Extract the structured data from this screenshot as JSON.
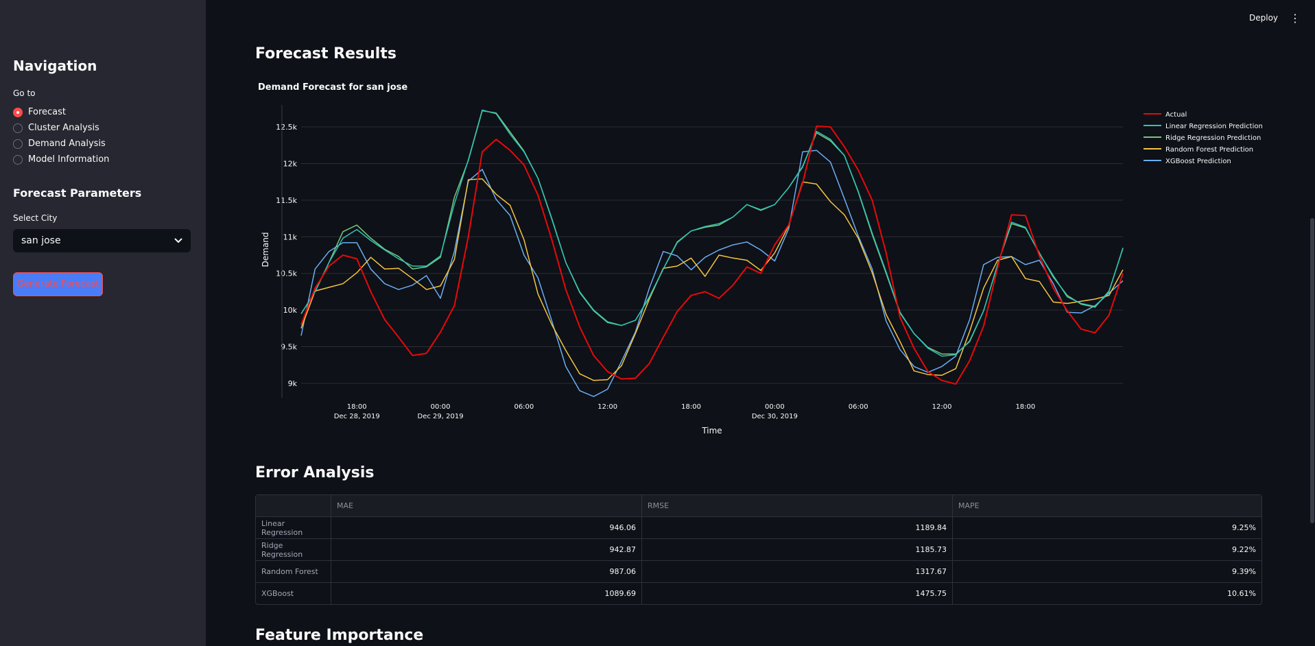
{
  "sidebar": {
    "title": "Navigation",
    "goto_label": "Go to",
    "nav_items": [
      {
        "label": "Forecast",
        "selected": true
      },
      {
        "label": "Cluster Analysis",
        "selected": false
      },
      {
        "label": "Demand Analysis",
        "selected": false
      },
      {
        "label": "Model Information",
        "selected": false
      }
    ],
    "params_title": "Forecast Parameters",
    "city_label": "Select City",
    "city_value": "san jose",
    "generate_label": "Generate Forecast"
  },
  "header": {
    "deploy_label": "Deploy",
    "menu_icon": "kebab-menu-icon"
  },
  "main": {
    "forecast_title": "Forecast Results",
    "chart_title": "Demand Forecast for san jose",
    "error_title": "Error Analysis",
    "feature_title": "Feature Importance"
  },
  "chart_data": {
    "type": "line",
    "title": "Demand Forecast for san jose",
    "xlabel": "Time",
    "ylabel": "Demand",
    "ylim": [
      8850,
      12800
    ],
    "y_ticks": [
      9000,
      9500,
      10000,
      10500,
      11000,
      11500,
      12000,
      12500
    ],
    "y_tick_labels": [
      "9k",
      "9.5k",
      "10k",
      "10.5k",
      "11k",
      "11.5k",
      "12k",
      "12.5k"
    ],
    "x_range_hours": [
      0,
      59
    ],
    "x_ticks": [
      {
        "hour": 4,
        "label": "18:00",
        "label2": "Dec 28, 2019"
      },
      {
        "hour": 10,
        "label": "00:00",
        "label2": "Dec 29, 2019"
      },
      {
        "hour": 16,
        "label": "06:00",
        "label2": ""
      },
      {
        "hour": 22,
        "label": "12:00",
        "label2": ""
      },
      {
        "hour": 28,
        "label": "18:00",
        "label2": ""
      },
      {
        "hour": 34,
        "label": "00:00",
        "label2": "Dec 30, 2019"
      },
      {
        "hour": 40,
        "label": "06:00",
        "label2": ""
      },
      {
        "hour": 46,
        "label": "12:00",
        "label2": ""
      },
      {
        "hour": 52,
        "label": "18:00",
        "label2": ""
      }
    ],
    "grid": true,
    "legend": "top-right",
    "series": [
      {
        "name": "Actual",
        "color": "#e8090b",
        "width": 2,
        "values": [
          9800,
          10300,
          10600,
          10750,
          10700,
          10250,
          9870,
          9630,
          9380,
          9410,
          9700,
          10060,
          11000,
          12160,
          12330,
          12180,
          11980,
          11570,
          10960,
          10280,
          9770,
          9380,
          9160,
          9060,
          9070,
          9270,
          9630,
          9980,
          10200,
          10250,
          10160,
          10340,
          10590,
          10500,
          10890,
          11160,
          11730,
          12510,
          12500,
          12230,
          11910,
          11500,
          10780,
          9900,
          9480,
          9160,
          9040,
          8990,
          9310,
          9780,
          10580,
          11300,
          11290,
          10740,
          10300,
          9990,
          9740,
          9690,
          9930,
          10500
        ]
      },
      {
        "name": "Linear Regression Prediction",
        "color": "#2ec4b6",
        "width": 1.5,
        "values": [
          9950,
          10250,
          10650,
          10980,
          11100,
          10950,
          10820,
          10700,
          10600,
          10600,
          10740,
          11450,
          12050,
          12730,
          12680,
          12400,
          12160,
          11800,
          11250,
          10650,
          10250,
          10000,
          9840,
          9790,
          9860,
          10180,
          10560,
          10920,
          11080,
          11140,
          11180,
          11270,
          11440,
          11370,
          11440,
          11670,
          11950,
          12440,
          12330,
          12110,
          11620,
          11050,
          10520,
          9970,
          9680,
          9480,
          9370,
          9390,
          9580,
          9990,
          10620,
          11200,
          11130,
          10770,
          10470,
          10180,
          10090,
          10050,
          10250,
          10850
        ]
      },
      {
        "name": "Ridge Regression Prediction",
        "color": "#7bc67e",
        "width": 1.5,
        "values": [
          9950,
          10250,
          10650,
          11070,
          11160,
          10980,
          10830,
          10730,
          10560,
          10590,
          10720,
          11540,
          12040,
          12720,
          12690,
          12430,
          12170,
          11800,
          11240,
          10650,
          10240,
          9990,
          9830,
          9790,
          9860,
          10170,
          10560,
          10930,
          11080,
          11130,
          11160,
          11270,
          11440,
          11360,
          11440,
          11670,
          11960,
          12420,
          12310,
          12110,
          11610,
          11030,
          10500,
          9960,
          9680,
          9490,
          9400,
          9400,
          9570,
          9990,
          10620,
          11180,
          11120,
          10780,
          10450,
          10200,
          10080,
          10040,
          10260,
          10840
        ]
      },
      {
        "name": "Random Forest Prediction",
        "color": "#f5c542",
        "width": 1.5,
        "values": [
          9750,
          10260,
          10310,
          10360,
          10510,
          10720,
          10560,
          10570,
          10430,
          10280,
          10330,
          10690,
          11780,
          11790,
          11580,
          11430,
          10960,
          10220,
          9800,
          9450,
          9130,
          9040,
          9050,
          9240,
          9680,
          10150,
          10570,
          10600,
          10710,
          10460,
          10750,
          10710,
          10680,
          10540,
          10780,
          11150,
          11750,
          11720,
          11480,
          11300,
          10980,
          10510,
          9940,
          9570,
          9170,
          9120,
          9110,
          9200,
          9710,
          10300,
          10680,
          10730,
          10430,
          10390,
          10110,
          10090,
          10120,
          10150,
          10200,
          10550
        ]
      },
      {
        "name": "XGBoost Prediction",
        "color": "#6aaef5",
        "width": 1.5,
        "values": [
          9650,
          10560,
          10800,
          10920,
          10920,
          10560,
          10360,
          10280,
          10340,
          10470,
          10160,
          10800,
          11760,
          11920,
          11510,
          11290,
          10750,
          10440,
          9850,
          9230,
          8900,
          8820,
          8920,
          9300,
          9700,
          10300,
          10800,
          10740,
          10550,
          10720,
          10820,
          10890,
          10930,
          10820,
          10670,
          11110,
          12160,
          12180,
          12020,
          11520,
          11010,
          10560,
          9850,
          9460,
          9230,
          9150,
          9230,
          9370,
          9870,
          10620,
          10720,
          10730,
          10620,
          10680,
          10360,
          9970,
          9960,
          10060,
          10230,
          10400
        ]
      }
    ]
  },
  "error_table": {
    "headers": [
      "",
      "MAE",
      "RMSE",
      "MAPE"
    ],
    "rows": [
      {
        "model": "Linear Regression",
        "mae": "946.06",
        "rmse": "1189.84",
        "mape": "9.25%"
      },
      {
        "model": "Ridge Regression",
        "mae": "942.87",
        "rmse": "1185.73",
        "mape": "9.22%"
      },
      {
        "model": "Random Forest",
        "mae": "987.06",
        "rmse": "1317.67",
        "mape": "9.39%"
      },
      {
        "model": "XGBoost",
        "mae": "1089.69",
        "rmse": "1475.75",
        "mape": "10.61%"
      }
    ]
  }
}
